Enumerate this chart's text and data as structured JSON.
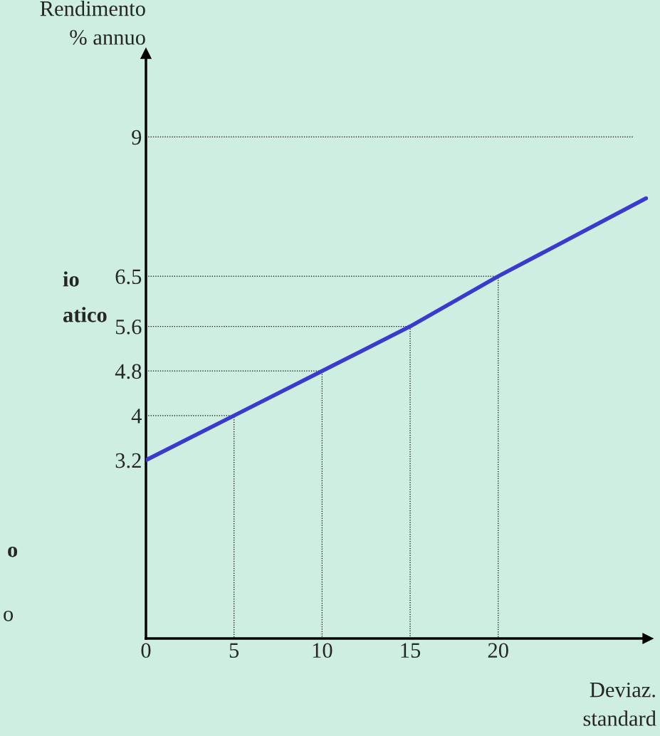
{
  "chart_data": {
    "type": "line",
    "xlabel": "Deviaz.\nstandard",
    "ylabel": "Rendimento\n% annuo",
    "x": [
      0,
      5,
      10,
      15,
      20,
      28.4
    ],
    "series": [
      {
        "color": "#3a3acc",
        "values": [
          3.2,
          4,
          4.8,
          5.6,
          6.5,
          7.9
        ]
      },
      {
        "type": "line",
        "line_style": "dotted",
        "color": "#000000",
        "x": [
          0,
          27.7
        ],
        "values": [
          9,
          9
        ]
      },
      {
        "type": "line",
        "line_style": "dotted",
        "color": "#000000",
        "x": [
          0,
          5,
          5
        ],
        "values": [
          4,
          4,
          0
        ]
      },
      {
        "type": "line",
        "line_style": "dotted",
        "color": "#000000",
        "x": [
          0,
          10,
          10
        ],
        "values": [
          4.8,
          4.8,
          0
        ]
      },
      {
        "type": "line",
        "line_style": "dotted",
        "color": "#000000",
        "x": [
          0,
          15,
          15
        ],
        "values": [
          5.6,
          5.6,
          0
        ]
      },
      {
        "type": "line",
        "line_style": "dotted",
        "color": "#000000",
        "x": [
          0,
          20,
          20
        ],
        "values": [
          6.5,
          6.5,
          0
        ]
      }
    ],
    "xlim": [
      0,
      28.5
    ],
    "ylim": [
      0,
      10.5
    ],
    "xticks": [
      0,
      5,
      10,
      15,
      20
    ],
    "yticks": [
      3.2,
      4,
      4.8,
      5.6,
      6.5,
      9
    ],
    "annotations": [
      "io",
      "atico",
      "o",
      "o"
    ],
    "grid": false,
    "legend": false,
    "marker": "none",
    "line_style": "solid"
  }
}
